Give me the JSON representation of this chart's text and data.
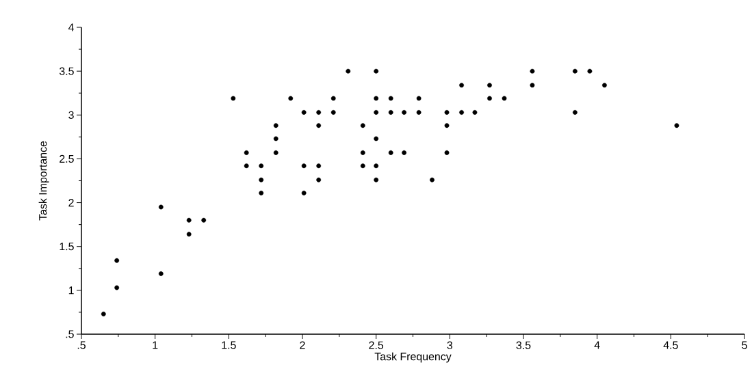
{
  "chart_data": {
    "type": "scatter",
    "xlabel": "Task Frequency",
    "ylabel": "Task Importance",
    "marker": "circle",
    "color": "#000000",
    "grid": false,
    "xlim": [
      0.5,
      5
    ],
    "ylim": [
      0.5,
      4
    ],
    "xticks": [
      {
        "value": 0.5,
        "label": ".5"
      },
      1,
      1.5,
      2,
      2.5,
      3,
      3.5,
      4,
      4.5,
      5
    ],
    "yticks": [
      {
        "value": 0.5,
        "label": ".5"
      },
      1,
      1.5,
      2,
      2.5,
      3,
      3.5,
      4
    ],
    "x": [
      0.65,
      0.74,
      0.74,
      1.04,
      1.04,
      1.23,
      1.23,
      1.33,
      1.53,
      1.62,
      1.62,
      1.72,
      1.72,
      1.72,
      1.82,
      1.82,
      1.82,
      1.92,
      2.01,
      2.01,
      2.01,
      2.31,
      2.5,
      3.08,
      3.27,
      2.21,
      2.5,
      2.6,
      2.79,
      3.27,
      3.37,
      2.11,
      2.21,
      2.5,
      2.6,
      2.69,
      2.79,
      2.98,
      3.08,
      3.17,
      2.11,
      2.41,
      2.98,
      2.5,
      2.41,
      2.6,
      2.69,
      2.98,
      2.11,
      2.41,
      2.5,
      2.11,
      2.5,
      2.88,
      3.56,
      3.85,
      3.95,
      3.56,
      4.05,
      3.85,
      4.54
    ],
    "values": [
      0.73,
      1.03,
      1.34,
      1.19,
      1.95,
      1.64,
      1.8,
      1.8,
      3.19,
      2.57,
      2.42,
      2.42,
      2.26,
      2.11,
      2.88,
      2.73,
      2.57,
      3.19,
      3.03,
      2.42,
      2.11,
      3.5,
      3.5,
      3.34,
      3.34,
      3.19,
      3.19,
      3.19,
      3.19,
      3.19,
      3.19,
      3.03,
      3.03,
      3.03,
      3.03,
      3.03,
      3.03,
      3.03,
      3.03,
      3.03,
      2.88,
      2.88,
      2.88,
      2.73,
      2.57,
      2.57,
      2.57,
      2.57,
      2.42,
      2.42,
      2.42,
      2.26,
      2.26,
      2.26,
      3.5,
      3.5,
      3.5,
      3.34,
      3.34,
      3.03,
      2.88
    ]
  }
}
